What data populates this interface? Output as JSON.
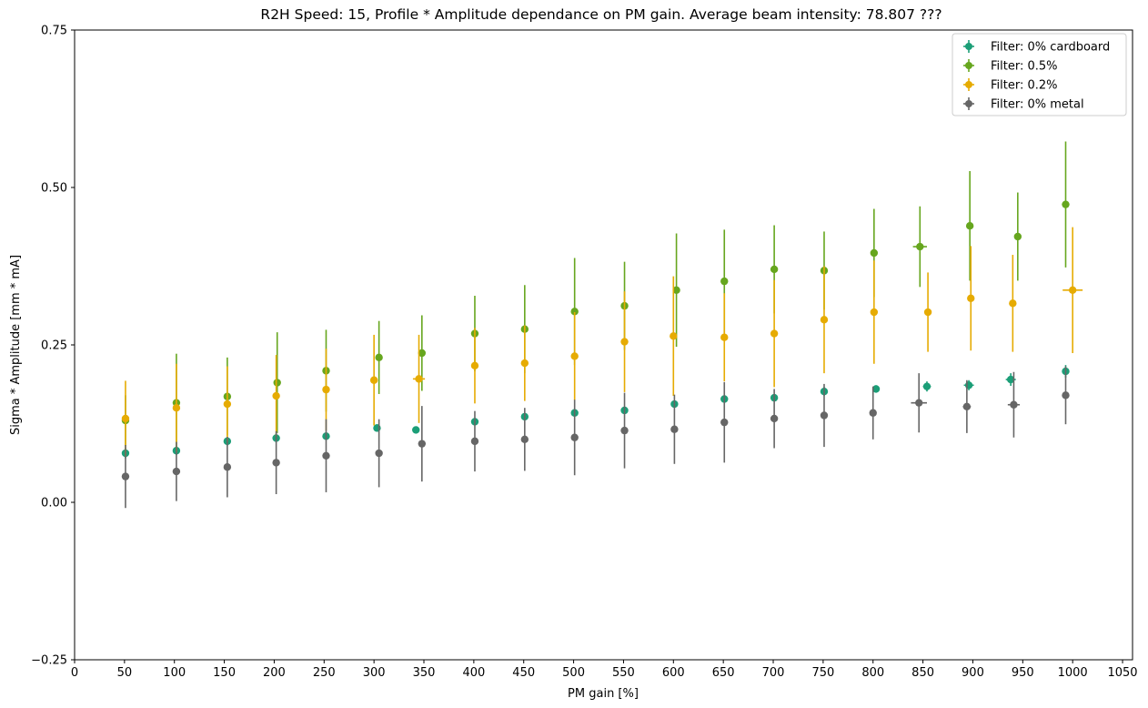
{
  "chart_data": {
    "type": "scatter",
    "title": "R2H Speed: 15, Profile * Amplitude dependance on PM gain. Average beam intensity: 78.807 ???",
    "xlabel": "PM gain [%]",
    "ylabel": "Sigma * Amplitude [mm * mA]",
    "xlim": [
      0,
      1060
    ],
    "ylim": [
      -0.25,
      0.75
    ],
    "x_ticks": [
      0,
      50,
      100,
      150,
      200,
      250,
      300,
      350,
      400,
      450,
      500,
      550,
      600,
      650,
      700,
      750,
      800,
      850,
      900,
      950,
      1000,
      1050
    ],
    "y_ticks": [
      -0.25,
      0.0,
      0.25,
      0.5,
      0.75
    ],
    "y_tick_labels": [
      "−0.25",
      "0.00",
      "0.25",
      "0.50",
      "0.75"
    ],
    "legend_position": "top-right",
    "error_bars": true,
    "series": [
      {
        "name": "Filter: 0% cardboard",
        "color": "#1b9e77",
        "points": [
          {
            "x": 51,
            "y": 0.078,
            "yerr": 0.008,
            "xerr": 1
          },
          {
            "x": 102,
            "y": 0.082,
            "yerr": 0.007,
            "xerr": 1
          },
          {
            "x": 153,
            "y": 0.097,
            "yerr": 0.007,
            "xerr": 1
          },
          {
            "x": 202,
            "y": 0.102,
            "yerr": 0.007,
            "xerr": 1
          },
          {
            "x": 252,
            "y": 0.105,
            "yerr": 0.006,
            "xerr": 1
          },
          {
            "x": 303,
            "y": 0.118,
            "yerr": 0.006,
            "xerr": 2
          },
          {
            "x": 342,
            "y": 0.115,
            "yerr": 0.005,
            "xerr": 2
          },
          {
            "x": 401,
            "y": 0.128,
            "yerr": 0.005,
            "xerr": 1
          },
          {
            "x": 451,
            "y": 0.136,
            "yerr": 0.006,
            "xerr": 1
          },
          {
            "x": 501,
            "y": 0.142,
            "yerr": 0.006,
            "xerr": 1
          },
          {
            "x": 551,
            "y": 0.146,
            "yerr": 0.006,
            "xerr": 1
          },
          {
            "x": 601,
            "y": 0.156,
            "yerr": 0.006,
            "xerr": 1
          },
          {
            "x": 651,
            "y": 0.164,
            "yerr": 0.006,
            "xerr": 1
          },
          {
            "x": 701,
            "y": 0.166,
            "yerr": 0.006,
            "xerr": 1
          },
          {
            "x": 751,
            "y": 0.176,
            "yerr": 0.007,
            "xerr": 1
          },
          {
            "x": 803,
            "y": 0.18,
            "yerr": 0.006,
            "xerr": 3
          },
          {
            "x": 854,
            "y": 0.184,
            "yerr": 0.008,
            "xerr": 4
          },
          {
            "x": 896,
            "y": 0.186,
            "yerr": 0.008,
            "xerr": 5
          },
          {
            "x": 938,
            "y": 0.195,
            "yerr": 0.01,
            "xerr": 5
          },
          {
            "x": 993,
            "y": 0.208,
            "yerr": 0.01,
            "xerr": 2
          }
        ]
      },
      {
        "name": "Filter: 0.5%",
        "color": "#66a61e",
        "points": [
          {
            "x": 51,
            "y": 0.13,
            "yerr": 0.04,
            "xerr": 1
          },
          {
            "x": 102,
            "y": 0.158,
            "yerr": 0.078,
            "xerr": 1
          },
          {
            "x": 153,
            "y": 0.168,
            "yerr": 0.062,
            "xerr": 1
          },
          {
            "x": 203,
            "y": 0.19,
            "yerr": 0.08,
            "xerr": 1
          },
          {
            "x": 252,
            "y": 0.209,
            "yerr": 0.065,
            "xerr": 1
          },
          {
            "x": 305,
            "y": 0.23,
            "yerr": 0.058,
            "xerr": 1
          },
          {
            "x": 348,
            "y": 0.237,
            "yerr": 0.06,
            "xerr": 1
          },
          {
            "x": 401,
            "y": 0.268,
            "yerr": 0.06,
            "xerr": 1
          },
          {
            "x": 451,
            "y": 0.275,
            "yerr": 0.07,
            "xerr": 1
          },
          {
            "x": 501,
            "y": 0.303,
            "yerr": 0.085,
            "xerr": 1
          },
          {
            "x": 551,
            "y": 0.312,
            "yerr": 0.07,
            "xerr": 1
          },
          {
            "x": 603,
            "y": 0.337,
            "yerr": 0.09,
            "xerr": 1
          },
          {
            "x": 651,
            "y": 0.351,
            "yerr": 0.082,
            "xerr": 1
          },
          {
            "x": 701,
            "y": 0.37,
            "yerr": 0.07,
            "xerr": 1
          },
          {
            "x": 751,
            "y": 0.368,
            "yerr": 0.062,
            "xerr": 1
          },
          {
            "x": 801,
            "y": 0.396,
            "yerr": 0.07,
            "xerr": 1
          },
          {
            "x": 847,
            "y": 0.406,
            "yerr": 0.064,
            "xerr": 7
          },
          {
            "x": 897,
            "y": 0.439,
            "yerr": 0.087,
            "xerr": 1
          },
          {
            "x": 945,
            "y": 0.422,
            "yerr": 0.07,
            "xerr": 1
          },
          {
            "x": 993,
            "y": 0.473,
            "yerr": 0.1,
            "xerr": 1
          }
        ]
      },
      {
        "name": "Filter: 0.2%",
        "color": "#e6ab02",
        "points": [
          {
            "x": 51,
            "y": 0.133,
            "yerr": 0.06,
            "xerr": 1
          },
          {
            "x": 102,
            "y": 0.15,
            "yerr": 0.07,
            "xerr": 1
          },
          {
            "x": 153,
            "y": 0.156,
            "yerr": 0.06,
            "xerr": 1
          },
          {
            "x": 202,
            "y": 0.169,
            "yerr": 0.065,
            "xerr": 1
          },
          {
            "x": 252,
            "y": 0.179,
            "yerr": 0.065,
            "xerr": 1
          },
          {
            "x": 300,
            "y": 0.194,
            "yerr": 0.072,
            "xerr": 1
          },
          {
            "x": 345,
            "y": 0.196,
            "yerr": 0.07,
            "xerr": 6
          },
          {
            "x": 401,
            "y": 0.217,
            "yerr": 0.06,
            "xerr": 1
          },
          {
            "x": 451,
            "y": 0.221,
            "yerr": 0.06,
            "xerr": 1
          },
          {
            "x": 501,
            "y": 0.232,
            "yerr": 0.07,
            "xerr": 1
          },
          {
            "x": 551,
            "y": 0.255,
            "yerr": 0.08,
            "xerr": 1
          },
          {
            "x": 600,
            "y": 0.264,
            "yerr": 0.095,
            "xerr": 1
          },
          {
            "x": 651,
            "y": 0.262,
            "yerr": 0.07,
            "xerr": 1
          },
          {
            "x": 701,
            "y": 0.268,
            "yerr": 0.085,
            "xerr": 1
          },
          {
            "x": 751,
            "y": 0.29,
            "yerr": 0.085,
            "xerr": 1
          },
          {
            "x": 801,
            "y": 0.302,
            "yerr": 0.082,
            "xerr": 1
          },
          {
            "x": 855,
            "y": 0.302,
            "yerr": 0.063,
            "xerr": 1
          },
          {
            "x": 898,
            "y": 0.324,
            "yerr": 0.083,
            "xerr": 1
          },
          {
            "x": 940,
            "y": 0.316,
            "yerr": 0.077,
            "xerr": 1
          },
          {
            "x": 1000,
            "y": 0.337,
            "yerr": 0.1,
            "xerr": 10
          }
        ]
      },
      {
        "name": "Filter: 0% metal",
        "color": "#666666",
        "points": [
          {
            "x": 51,
            "y": 0.041,
            "yerr": 0.05,
            "xerr": 1
          },
          {
            "x": 102,
            "y": 0.049,
            "yerr": 0.047,
            "xerr": 1
          },
          {
            "x": 153,
            "y": 0.056,
            "yerr": 0.048,
            "xerr": 1
          },
          {
            "x": 202,
            "y": 0.063,
            "yerr": 0.05,
            "xerr": 1
          },
          {
            "x": 252,
            "y": 0.074,
            "yerr": 0.058,
            "xerr": 1
          },
          {
            "x": 305,
            "y": 0.078,
            "yerr": 0.054,
            "xerr": 1
          },
          {
            "x": 348,
            "y": 0.093,
            "yerr": 0.06,
            "xerr": 1
          },
          {
            "x": 401,
            "y": 0.097,
            "yerr": 0.048,
            "xerr": 1
          },
          {
            "x": 451,
            "y": 0.1,
            "yerr": 0.05,
            "xerr": 1
          },
          {
            "x": 501,
            "y": 0.103,
            "yerr": 0.06,
            "xerr": 1
          },
          {
            "x": 551,
            "y": 0.114,
            "yerr": 0.06,
            "xerr": 1
          },
          {
            "x": 601,
            "y": 0.116,
            "yerr": 0.055,
            "xerr": 1
          },
          {
            "x": 651,
            "y": 0.127,
            "yerr": 0.064,
            "xerr": 1
          },
          {
            "x": 701,
            "y": 0.133,
            "yerr": 0.047,
            "xerr": 1
          },
          {
            "x": 751,
            "y": 0.138,
            "yerr": 0.05,
            "xerr": 1
          },
          {
            "x": 800,
            "y": 0.142,
            "yerr": 0.042,
            "xerr": 1
          },
          {
            "x": 846,
            "y": 0.158,
            "yerr": 0.047,
            "xerr": 8
          },
          {
            "x": 894,
            "y": 0.152,
            "yerr": 0.042,
            "xerr": 4
          },
          {
            "x": 941,
            "y": 0.155,
            "yerr": 0.052,
            "xerr": 6
          },
          {
            "x": 993,
            "y": 0.17,
            "yerr": 0.046,
            "xerr": 1
          }
        ]
      }
    ]
  }
}
